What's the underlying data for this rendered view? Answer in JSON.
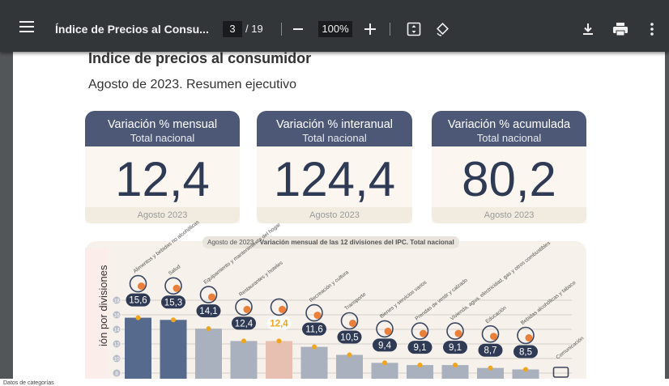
{
  "toolbar": {
    "menu_icon": "menu-icon",
    "title": "Índice de Precios al Consu...",
    "page_current": "3",
    "page_total": "/ 19",
    "zoom": "100%",
    "icons": [
      "zoom-out-icon",
      "zoom-in-icon",
      "fit-page-icon",
      "rotate-icon",
      "download-icon",
      "print-icon",
      "more-options-icon"
    ]
  },
  "document": {
    "heading": "Índice de precios al consumidor",
    "subtitle": "Agosto de 2023. Resumen ejecutivo",
    "cards": [
      {
        "title": "Variación % mensual",
        "subtitle": "Total nacional",
        "value": "12,4",
        "footer": "Agosto 2023"
      },
      {
        "title": "Variación % interanual",
        "subtitle": "Total nacional",
        "value": "124,4",
        "footer": "Agosto 2023"
      },
      {
        "title": "Variación % acumulada",
        "subtitle": "Total nacional",
        "value": "80,2",
        "footer": "Agosto 2023"
      }
    ],
    "chart_caption_prefix": "Agosto de 2023 - ",
    "chart_caption_bold": "Variación mensual de las 12 divisiones del IPC. Total nacional",
    "chart_y_title": "ión por divisiones"
  },
  "colors": {
    "toolbar": "#323639",
    "viewer_bg": "#525659",
    "card_header": "#4d5877",
    "card_value": "#2f3a55",
    "bar_dark": "#566a8e",
    "bar_light": "#a9b1be",
    "bar_highlight": "#e7c0b1",
    "accent_orange": "#f0a51e",
    "icon_orange": "#e97f3a"
  },
  "chart_data": {
    "type": "bar",
    "title": "Agosto de 2023 - Variación mensual de las 12 divisiones del IPC. Total nacional",
    "ylabel": "ión por divisiones",
    "y_ticks": [
      8,
      10,
      12,
      14,
      16,
      18
    ],
    "ylim": [
      7,
      19
    ],
    "categories": [
      "Alimentos y bebidas no alcohólicas",
      "Salud",
      "Equipamiento y mantenimiento del hogar",
      "Restaurantes y hoteles",
      "",
      "Recreación y cultura",
      "Transporte",
      "Bienes y servicios varios",
      "Prendas de vestir y calzado",
      "Vivienda, agua, electricidad, gas y otros combustibles",
      "Educación",
      "Bebidas alcohólicas y tabaco",
      "Comunicación"
    ],
    "values": [
      15.6,
      15.3,
      14.1,
      12.4,
      12.4,
      11.6,
      10.5,
      9.4,
      9.1,
      9.1,
      8.7,
      8.5,
      null
    ],
    "value_labels": [
      "15,6",
      "15,3",
      "14,1",
      "12,4",
      "12,4",
      "11,6",
      "10,5",
      "9,4",
      "9,1",
      "9,1",
      "8,7",
      "8,5",
      ""
    ],
    "highlight_index": 4
  },
  "status": {
    "text": "Datos de categorías"
  }
}
